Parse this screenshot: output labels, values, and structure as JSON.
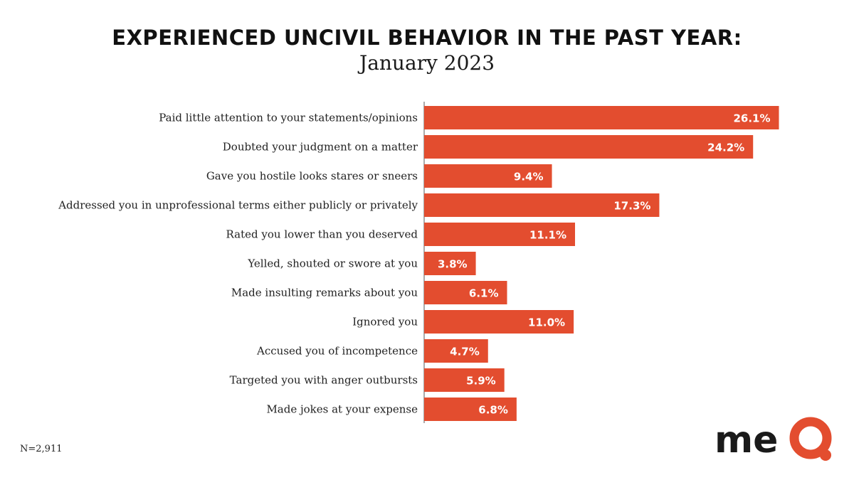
{
  "chart_data": {
    "type": "bar",
    "orientation": "horizontal",
    "title": "EXPERIENCED UNCIVIL BEHAVIOR IN THE PAST YEAR:",
    "subtitle": "January 2023",
    "categories": [
      "Paid little attention to your statements/opinions",
      "Doubted your judgment on a matter",
      "Gave you hostile looks stares or sneers",
      "Addressed you in unprofessional terms either publicly or privately",
      "Rated you lower than you deserved",
      "Yelled, shouted or swore at you",
      "Made insulting  remarks about you",
      "Ignored you",
      "Accused you of incompetence",
      "Targeted you with anger outbursts",
      "Made jokes at your expense"
    ],
    "values": [
      26.1,
      24.2,
      9.4,
      17.3,
      11.1,
      3.8,
      6.1,
      11.0,
      4.7,
      5.9,
      6.8
    ],
    "value_labels": [
      "26.1%",
      "24.2%",
      "9.4%",
      "17.3%",
      "11.1%",
      "3.8%",
      "6.1%",
      "11.0%",
      "4.7%",
      "5.9%",
      "6.8%"
    ],
    "bar_color": "#e34d2f",
    "xlim": [
      0,
      30
    ],
    "grid": false,
    "legend": "none"
  },
  "footnote": "N=2,911",
  "logo": {
    "text": "meQ",
    "text_color": "#1a1a1a",
    "accent_color": "#e34d2f"
  }
}
